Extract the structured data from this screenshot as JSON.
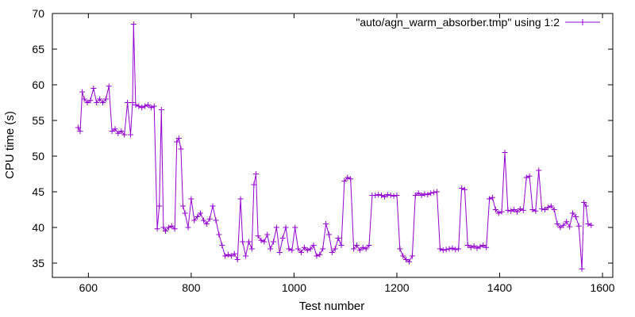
{
  "chart_data": {
    "type": "line",
    "xlabel": "Test number",
    "ylabel": "CPU time (s)",
    "xlim": [
      530,
      1620
    ],
    "ylim": [
      33,
      70
    ],
    "xticks": [
      600,
      800,
      1000,
      1200,
      1400,
      1600
    ],
    "yticks": [
      35,
      40,
      45,
      50,
      55,
      60,
      65,
      70
    ],
    "grid": false,
    "legend_position": "top-right",
    "series": [
      {
        "name": "\"auto/agn_warm_absorber.tmp\" using 1:2",
        "color": "#9400d3",
        "marker": "plus",
        "points": [
          [
            580,
            54
          ],
          [
            584,
            53.5
          ],
          [
            588,
            59
          ],
          [
            592,
            58
          ],
          [
            598,
            57.5
          ],
          [
            604,
            57.8
          ],
          [
            610,
            59.5
          ],
          [
            616,
            57.5
          ],
          [
            622,
            58
          ],
          [
            628,
            57.5
          ],
          [
            634,
            58
          ],
          [
            640,
            59.8
          ],
          [
            646,
            53.5
          ],
          [
            652,
            53.8
          ],
          [
            658,
            53.2
          ],
          [
            664,
            53.5
          ],
          [
            670,
            53
          ],
          [
            676,
            57.5
          ],
          [
            682,
            53
          ],
          [
            686,
            57.5
          ],
          [
            688,
            68.5
          ],
          [
            692,
            57.2
          ],
          [
            698,
            57
          ],
          [
            704,
            56.8
          ],
          [
            710,
            57
          ],
          [
            716,
            57.2
          ],
          [
            722,
            56.8
          ],
          [
            728,
            57
          ],
          [
            734,
            39.8
          ],
          [
            738,
            43
          ],
          [
            742,
            56.5
          ],
          [
            746,
            40
          ],
          [
            750,
            39.5
          ],
          [
            756,
            40
          ],
          [
            762,
            40.2
          ],
          [
            768,
            39.8
          ],
          [
            772,
            52
          ],
          [
            776,
            52.5
          ],
          [
            780,
            51
          ],
          [
            784,
            43
          ],
          [
            788,
            42
          ],
          [
            794,
            40
          ],
          [
            800,
            44
          ],
          [
            806,
            41
          ],
          [
            812,
            41.5
          ],
          [
            818,
            42
          ],
          [
            824,
            41
          ],
          [
            830,
            40.5
          ],
          [
            836,
            41.2
          ],
          [
            842,
            43
          ],
          [
            848,
            41
          ],
          [
            854,
            39
          ],
          [
            860,
            37.5
          ],
          [
            866,
            36
          ],
          [
            872,
            36.2
          ],
          [
            878,
            36
          ],
          [
            884,
            36.3
          ],
          [
            890,
            35.5
          ],
          [
            896,
            44
          ],
          [
            900,
            38
          ],
          [
            906,
            36
          ],
          [
            912,
            38
          ],
          [
            918,
            37
          ],
          [
            922,
            46
          ],
          [
            926,
            47.5
          ],
          [
            930,
            38.8
          ],
          [
            936,
            38.2
          ],
          [
            942,
            38
          ],
          [
            948,
            39
          ],
          [
            954,
            37
          ],
          [
            960,
            38
          ],
          [
            966,
            40
          ],
          [
            972,
            36.5
          ],
          [
            978,
            38.5
          ],
          [
            984,
            40
          ],
          [
            990,
            37
          ],
          [
            996,
            36.8
          ],
          [
            1002,
            40
          ],
          [
            1008,
            37
          ],
          [
            1014,
            36.5
          ],
          [
            1020,
            37.2
          ],
          [
            1026,
            36.8
          ],
          [
            1032,
            37
          ],
          [
            1038,
            37.5
          ],
          [
            1044,
            36
          ],
          [
            1050,
            36.2
          ],
          [
            1056,
            37
          ],
          [
            1062,
            40.5
          ],
          [
            1068,
            39
          ],
          [
            1074,
            36.5
          ],
          [
            1080,
            37
          ],
          [
            1086,
            38.5
          ],
          [
            1092,
            37.5
          ],
          [
            1098,
            46.5
          ],
          [
            1104,
            47
          ],
          [
            1110,
            46.8
          ],
          [
            1116,
            37
          ],
          [
            1122,
            37.5
          ],
          [
            1128,
            36.8
          ],
          [
            1134,
            37.2
          ],
          [
            1140,
            37
          ],
          [
            1146,
            37.5
          ],
          [
            1152,
            44.5
          ],
          [
            1158,
            44.5
          ],
          [
            1164,
            44.6
          ],
          [
            1170,
            44.5
          ],
          [
            1176,
            44.3
          ],
          [
            1182,
            44.6
          ],
          [
            1188,
            44.5
          ],
          [
            1194,
            44.4
          ],
          [
            1200,
            44.5
          ],
          [
            1206,
            37
          ],
          [
            1212,
            36
          ],
          [
            1218,
            35.5
          ],
          [
            1224,
            35.2
          ],
          [
            1230,
            36
          ],
          [
            1236,
            44.5
          ],
          [
            1242,
            44.8
          ],
          [
            1248,
            44.5
          ],
          [
            1254,
            44.7
          ],
          [
            1260,
            44.6
          ],
          [
            1266,
            44.8
          ],
          [
            1272,
            44.9
          ],
          [
            1278,
            45
          ],
          [
            1284,
            37
          ],
          [
            1290,
            36.8
          ],
          [
            1296,
            36.9
          ],
          [
            1302,
            37
          ],
          [
            1308,
            37.1
          ],
          [
            1314,
            36.9
          ],
          [
            1320,
            37
          ],
          [
            1326,
            45.5
          ],
          [
            1332,
            45.3
          ],
          [
            1338,
            37.5
          ],
          [
            1344,
            37.2
          ],
          [
            1350,
            37.4
          ],
          [
            1356,
            37.1
          ],
          [
            1362,
            37.3
          ],
          [
            1368,
            37.5
          ],
          [
            1374,
            37.2
          ],
          [
            1380,
            44
          ],
          [
            1386,
            44.2
          ],
          [
            1392,
            42.5
          ],
          [
            1398,
            42
          ],
          [
            1404,
            42.2
          ],
          [
            1410,
            50.5
          ],
          [
            1416,
            42.4
          ],
          [
            1422,
            42.3
          ],
          [
            1428,
            42.5
          ],
          [
            1434,
            42.2
          ],
          [
            1440,
            42.6
          ],
          [
            1446,
            42.4
          ],
          [
            1452,
            47
          ],
          [
            1458,
            47.2
          ],
          [
            1464,
            42.5
          ],
          [
            1470,
            42.3
          ],
          [
            1476,
            48
          ],
          [
            1482,
            42.6
          ],
          [
            1488,
            42.5
          ],
          [
            1494,
            42.8
          ],
          [
            1500,
            43
          ],
          [
            1506,
            42.5
          ],
          [
            1512,
            40.5
          ],
          [
            1518,
            40
          ],
          [
            1524,
            40.3
          ],
          [
            1530,
            40.8
          ],
          [
            1536,
            40.1
          ],
          [
            1542,
            42
          ],
          [
            1548,
            41.5
          ],
          [
            1554,
            40.2
          ],
          [
            1560,
            34.2
          ],
          [
            1564,
            43.5
          ],
          [
            1568,
            43
          ],
          [
            1572,
            40.5
          ],
          [
            1578,
            40.3
          ]
        ]
      }
    ]
  }
}
